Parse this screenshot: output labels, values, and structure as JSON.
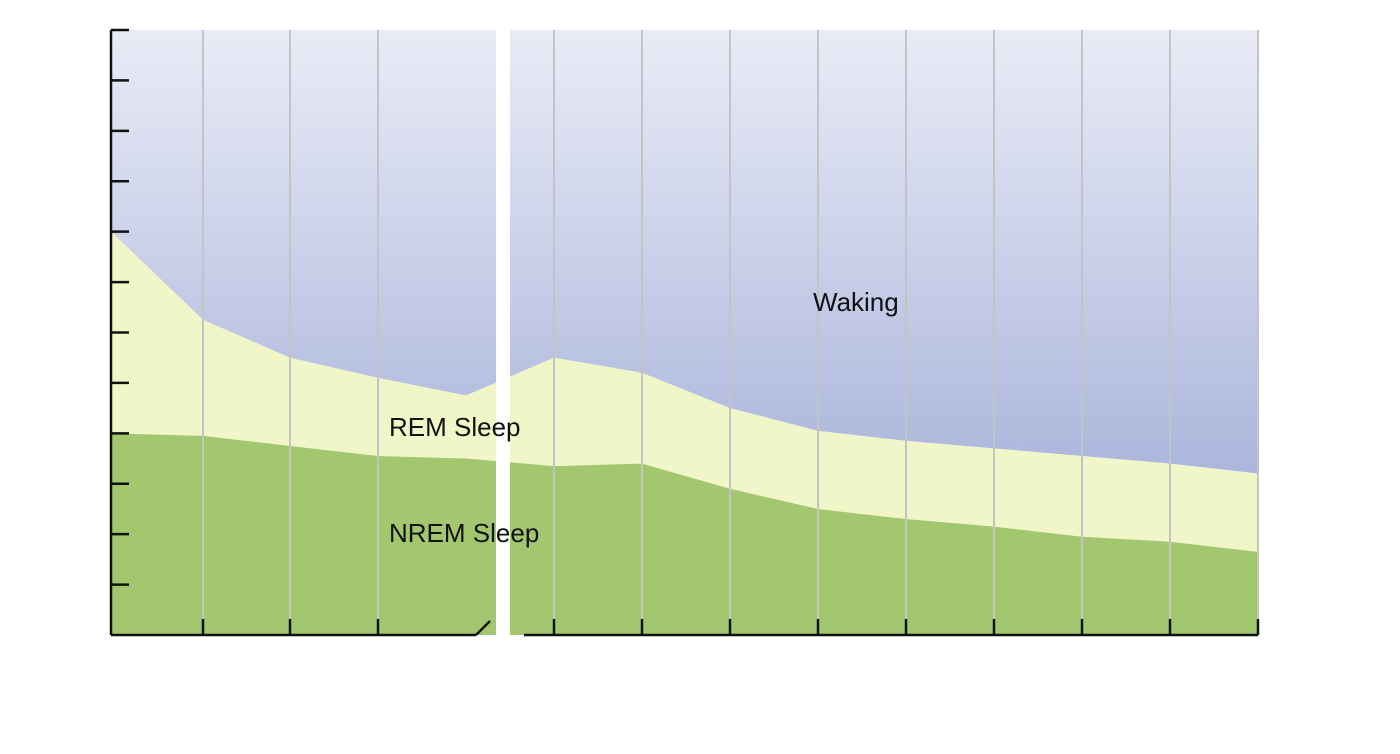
{
  "colors": {
    "waking_top": "#e9ebf6",
    "waking_bottom": "#abb6dc",
    "rem": "#f1f6c9",
    "nrem": "#a3c76f",
    "grid": "#c4c4c4",
    "axis": "#111111"
  },
  "chart_data": {
    "type": "area",
    "stacked": true,
    "title": "",
    "xlabel": "",
    "ylabel": "",
    "ylim": [
      0,
      12
    ],
    "grid": true,
    "axis_break": {
      "between": [
        3,
        4
      ]
    },
    "tick_labels_shown": false,
    "x": [
      0,
      1,
      2,
      3,
      4,
      5,
      6,
      7,
      8,
      9,
      10,
      11,
      12,
      13
    ],
    "series": [
      {
        "name": "NREM Sleep",
        "values": [
          4.0,
          3.95,
          3.75,
          3.55,
          3.5,
          3.35,
          3.4,
          2.9,
          2.5,
          2.3,
          2.15,
          1.95,
          1.85,
          1.65
        ]
      },
      {
        "name": "REM Sleep",
        "values": [
          8.0,
          6.25,
          5.5,
          5.1,
          4.75,
          5.5,
          5.2,
          4.5,
          4.05,
          3.85,
          3.7,
          3.55,
          3.4,
          3.2
        ]
      },
      {
        "name": "Waking",
        "values": [
          12,
          12,
          12,
          12,
          12,
          12,
          12,
          12,
          12,
          12,
          12,
          12,
          12,
          12
        ]
      }
    ]
  }
}
